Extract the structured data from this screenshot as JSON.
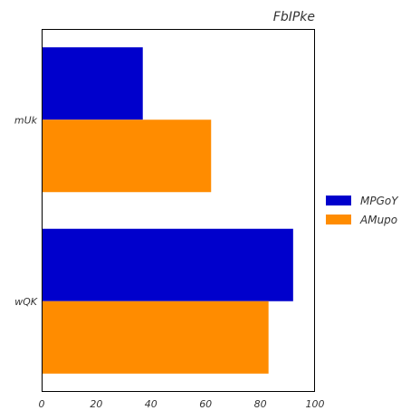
{
  "chart_data": {
    "type": "bar",
    "orientation": "horizontal",
    "title": "FbIPke",
    "xlabel": "",
    "ylabel": "",
    "categories": [
      "mUk",
      "wQK"
    ],
    "series": [
      {
        "name": "MPGoY",
        "values": [
          37,
          92
        ],
        "color": "#0000cc"
      },
      {
        "name": "AMupo",
        "values": [
          62,
          83
        ],
        "color": "#ff8c00"
      }
    ],
    "xlim": [
      0,
      100
    ],
    "xticks": [
      0,
      20,
      40,
      60,
      80,
      100
    ],
    "grid": false,
    "legend_position": "right"
  }
}
